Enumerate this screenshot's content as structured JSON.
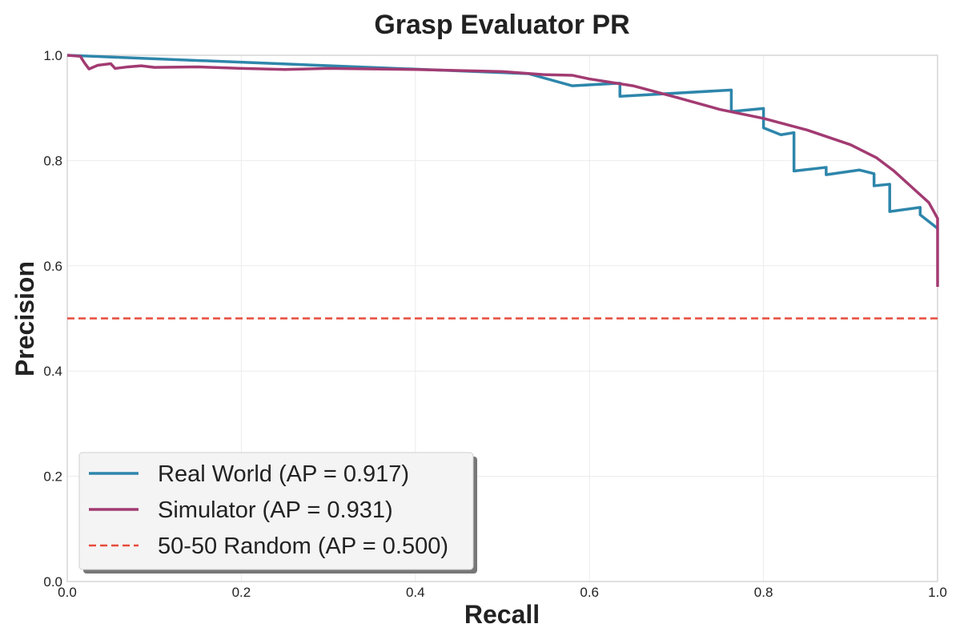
{
  "chart_data": {
    "type": "line",
    "title": "Grasp Evaluator PR",
    "xlabel": "Recall",
    "ylabel": "Precision",
    "xlim": [
      0.0,
      1.0
    ],
    "ylim": [
      0.0,
      1.0
    ],
    "xticks": [
      0.0,
      0.2,
      0.4,
      0.6,
      0.8,
      1.0
    ],
    "yticks": [
      0.0,
      0.2,
      0.4,
      0.6,
      0.8,
      1.0
    ],
    "xtick_labels": [
      "0.0",
      "0.2",
      "0.4",
      "0.6",
      "0.8",
      "1.0"
    ],
    "ytick_labels": [
      "0.0",
      "0.2",
      "0.4",
      "0.6",
      "0.8",
      "1.0"
    ],
    "grid": true,
    "legend_position": "lower-left",
    "series": [
      {
        "name": "Real World (AP = 0.917)",
        "color": "#2e86ab",
        "style": "solid",
        "x": [
          0.0,
          0.53,
          0.58,
          0.635,
          0.635,
          0.763,
          0.763,
          0.8,
          0.8,
          0.82,
          0.835,
          0.835,
          0.872,
          0.872,
          0.91,
          0.927,
          0.927,
          0.945,
          0.945,
          0.98,
          0.98,
          1.0
        ],
        "y": [
          1.0,
          0.965,
          0.942,
          0.947,
          0.922,
          0.934,
          0.893,
          0.899,
          0.862,
          0.849,
          0.853,
          0.78,
          0.787,
          0.773,
          0.782,
          0.775,
          0.752,
          0.755,
          0.703,
          0.711,
          0.697,
          0.671
        ]
      },
      {
        "name": "Simulator (AP = 0.931)",
        "color": "#a23b72",
        "style": "solid",
        "x": [
          0.0,
          0.015,
          0.02,
          0.025,
          0.035,
          0.05,
          0.055,
          0.07,
          0.085,
          0.1,
          0.15,
          0.2,
          0.25,
          0.3,
          0.4,
          0.5,
          0.55,
          0.58,
          0.6,
          0.65,
          0.7,
          0.75,
          0.8,
          0.85,
          0.9,
          0.93,
          0.95,
          0.97,
          0.99,
          1.0,
          1.0
        ],
        "y": [
          1.0,
          0.998,
          0.985,
          0.974,
          0.981,
          0.984,
          0.975,
          0.978,
          0.98,
          0.977,
          0.978,
          0.975,
          0.973,
          0.975,
          0.973,
          0.969,
          0.963,
          0.962,
          0.955,
          0.942,
          0.92,
          0.897,
          0.88,
          0.858,
          0.83,
          0.805,
          0.78,
          0.75,
          0.72,
          0.69,
          0.56
        ]
      },
      {
        "name": "50-50 Random (AP = 0.500)",
        "color": "#e74c3c",
        "style": "dashed",
        "x": [
          0.0,
          1.0
        ],
        "y": [
          0.5,
          0.5
        ]
      }
    ]
  }
}
